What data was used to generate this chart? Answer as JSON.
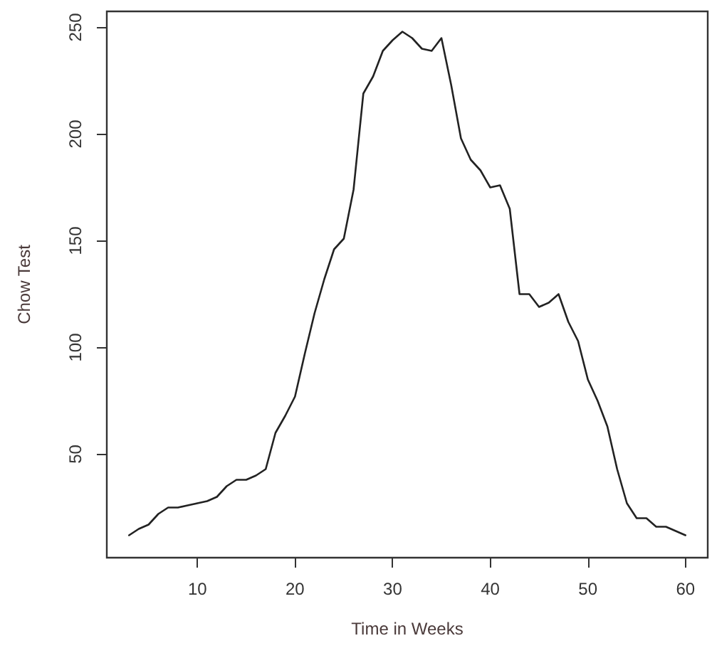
{
  "chart_data": {
    "type": "line",
    "xlabel": "Time in Weeks",
    "ylabel": "Chow Test",
    "x": [
      3,
      4,
      5,
      6,
      7,
      8,
      9,
      10,
      11,
      12,
      13,
      14,
      15,
      16,
      17,
      18,
      19,
      20,
      21,
      22,
      23,
      24,
      25,
      26,
      27,
      28,
      29,
      30,
      31,
      32,
      33,
      34,
      35,
      36,
      37,
      38,
      39,
      40,
      41,
      42,
      43,
      44,
      45,
      46,
      47,
      48,
      49,
      50,
      51,
      52,
      53,
      54,
      55,
      56,
      57,
      58,
      59,
      60
    ],
    "series": [
      {
        "color": "#222222",
        "values": [
          12,
          15,
          17,
          22,
          25,
          25,
          26,
          27,
          28,
          30,
          35,
          38,
          38,
          40,
          43,
          60,
          68,
          77,
          97,
          116,
          132,
          146,
          151,
          174,
          219,
          227,
          239,
          244,
          248,
          245,
          240,
          239,
          245,
          223,
          198,
          188,
          183,
          175,
          176,
          165,
          125,
          125,
          119,
          121,
          125,
          112,
          103,
          85,
          75,
          63,
          43,
          27,
          20,
          20,
          16,
          16,
          14,
          12
        ]
      }
    ],
    "xlim": [
      0.72,
      62.28
    ],
    "xticks": [
      10,
      20,
      30,
      40,
      50,
      60
    ],
    "ylim": [
      1.5,
      257.5
    ],
    "yticks": [
      50,
      100,
      150,
      200,
      250
    ],
    "grid": false,
    "marker": "none",
    "line_style": "solid"
  }
}
